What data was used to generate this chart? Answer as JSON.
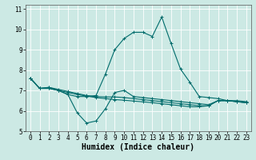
{
  "title": "",
  "xlabel": "Humidex (Indice chaleur)",
  "ylabel": "",
  "background_color": "#cce9e4",
  "grid_color": "#ffffff",
  "line_color": "#006b6b",
  "x_values": [
    0,
    1,
    2,
    3,
    4,
    5,
    6,
    7,
    8,
    9,
    10,
    11,
    12,
    13,
    14,
    15,
    16,
    17,
    18,
    19,
    20,
    21,
    22,
    23
  ],
  "series": [
    [
      7.6,
      7.1,
      7.1,
      7.0,
      6.8,
      5.9,
      5.4,
      5.5,
      6.1,
      6.9,
      7.0,
      6.7,
      6.65,
      6.6,
      6.55,
      6.5,
      6.45,
      6.4,
      6.35,
      6.3,
      6.5,
      6.5,
      6.45,
      6.4
    ],
    [
      7.6,
      7.1,
      7.1,
      7.0,
      6.8,
      6.7,
      6.7,
      6.75,
      7.8,
      9.0,
      9.55,
      9.85,
      9.85,
      9.65,
      10.6,
      9.3,
      8.05,
      7.4,
      6.7,
      6.65,
      6.6,
      6.5,
      6.5,
      6.45
    ],
    [
      7.6,
      7.1,
      7.15,
      7.05,
      6.95,
      6.85,
      6.75,
      6.7,
      6.68,
      6.68,
      6.65,
      6.6,
      6.55,
      6.5,
      6.45,
      6.4,
      6.35,
      6.3,
      6.25,
      6.25,
      6.5,
      6.5,
      6.45,
      6.4
    ],
    [
      7.6,
      7.1,
      7.15,
      7.0,
      6.9,
      6.8,
      6.72,
      6.65,
      6.6,
      6.55,
      6.52,
      6.48,
      6.44,
      6.4,
      6.35,
      6.3,
      6.25,
      6.2,
      6.2,
      6.25,
      6.5,
      6.5,
      6.45,
      6.4
    ]
  ],
  "xlim": [
    -0.5,
    23.5
  ],
  "ylim": [
    5,
    11.2
  ],
  "yticks": [
    5,
    6,
    7,
    8,
    9,
    10,
    11
  ],
  "xticks": [
    0,
    1,
    2,
    3,
    4,
    5,
    6,
    7,
    8,
    9,
    10,
    11,
    12,
    13,
    14,
    15,
    16,
    17,
    18,
    19,
    20,
    21,
    22,
    23
  ],
  "tick_fontsize": 5.5,
  "xlabel_fontsize": 7,
  "marker": "+",
  "markersize": 3,
  "markeredgewidth": 0.7,
  "linewidth": 0.8
}
